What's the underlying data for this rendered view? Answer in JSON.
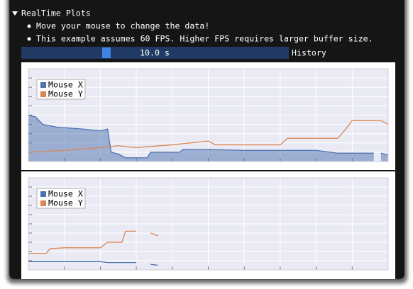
{
  "header": {
    "title": "RealTime Plots"
  },
  "bullets": [
    "Move your mouse to change the data!",
    "This example assumes 60 FPS. Higher FPS requires larger buffer size."
  ],
  "slider": {
    "value_label": "10.0 s",
    "label": "History"
  },
  "chart_data": [
    {
      "type": "line",
      "xlim": [
        0,
        10
      ],
      "ylim": [
        0,
        1
      ],
      "xticks": [
        0,
        1,
        2,
        3,
        4,
        5,
        6,
        7,
        8,
        9,
        10
      ],
      "yticks": [
        0,
        0.1,
        0.2,
        0.3,
        0.4,
        0.5,
        0.6,
        0.7,
        0.8,
        0.9,
        1
      ],
      "grid": true,
      "legend": "top-left",
      "series": [
        {
          "name": "Mouse X",
          "color": "#4c72b0",
          "shaded": true,
          "x": [
            0,
            0.2,
            0.4,
            0.8,
            1.5,
            2.0,
            2.2,
            2.3,
            2.5,
            2.7,
            3.3,
            3.4,
            4.2,
            4.3,
            5,
            6,
            7,
            8,
            8.6,
            9,
            9.6,
            9.7,
            9.8,
            10
          ],
          "values": [
            0.5,
            0.48,
            0.4,
            0.37,
            0.35,
            0.33,
            0.35,
            0.1,
            0.08,
            0.04,
            0.04,
            0.1,
            0.1,
            0.13,
            0.13,
            0.12,
            0.12,
            0.12,
            0.09,
            0.09,
            0.09,
            null,
            0.09,
            0.07
          ]
        },
        {
          "name": "Mouse Y",
          "color": "#dd8452",
          "x": [
            0,
            1,
            2,
            2.5,
            3,
            4,
            5,
            5.2,
            6,
            7,
            7.2,
            8,
            8.6,
            8.8,
            9,
            9.6,
            9.8,
            10
          ],
          "values": [
            0.1,
            0.12,
            0.15,
            0.17,
            0.15,
            0.18,
            0.22,
            0.18,
            0.18,
            0.18,
            0.25,
            0.25,
            0.25,
            0.34,
            0.44,
            0.44,
            0.44,
            0.4
          ]
        }
      ]
    },
    {
      "type": "line",
      "xlim": [
        0,
        10
      ],
      "ylim": [
        0,
        1
      ],
      "xticks": [
        0,
        1,
        2,
        3,
        4,
        5,
        6,
        7,
        8,
        9,
        10
      ],
      "yticks": [
        0,
        0.1,
        0.2,
        0.3,
        0.4,
        0.5,
        0.6,
        0.7,
        0.8,
        0.9,
        1
      ],
      "grid": true,
      "legend": "top-left",
      "series": [
        {
          "name": "Mouse X",
          "color": "#4c72b0",
          "x": [
            0,
            1,
            2,
            2.2,
            3,
            3.2,
            3.4,
            3.6
          ],
          "values": [
            0.09,
            0.09,
            0.09,
            0.08,
            0.08,
            null,
            0.06,
            0.05
          ]
        },
        {
          "name": "Mouse Y",
          "color": "#dd8452",
          "x": [
            0,
            0.5,
            0.6,
            1,
            2,
            2.2,
            2.6,
            2.7,
            3,
            3.2,
            3.4,
            3.6
          ],
          "values": [
            0.18,
            0.18,
            0.23,
            0.24,
            0.24,
            0.3,
            0.3,
            0.42,
            0.42,
            null,
            0.4,
            0.37
          ]
        }
      ]
    }
  ]
}
